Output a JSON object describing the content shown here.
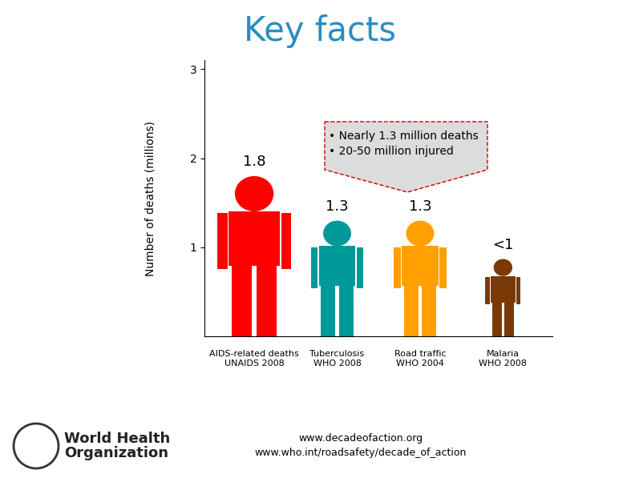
{
  "chart_data": {
    "type": "bar",
    "title": "Key facts",
    "y_label": "Number of deaths (millions)",
    "categories": [
      "AIDS-related deaths\nUNAIDS 2008",
      "Tuberculosis\nWHO 2008",
      "Road traffic\nWHO 2004",
      "Malaria\nWHO 2008"
    ],
    "values": [
      1.8,
      1.3,
      1.3,
      0.87
    ],
    "value_labels": [
      "1.8",
      "1.3",
      "1.3",
      "<1"
    ],
    "data_labels": true,
    "colors": [
      "#ff0000",
      "#009999",
      "#ffa000",
      "#7a3a08"
    ],
    "ylim": [
      0,
      3.1
    ],
    "yticks": [
      1,
      2,
      3
    ],
    "grid": false,
    "annotations": [
      "• Nearly 1.3 million deaths",
      "• 20-50 million injured"
    ],
    "footer": [
      "www.decadeofaction.org",
      "www.who.int/roadsafety/decade_of_action"
    ],
    "logo_text": "World Health\nOrganization"
  }
}
